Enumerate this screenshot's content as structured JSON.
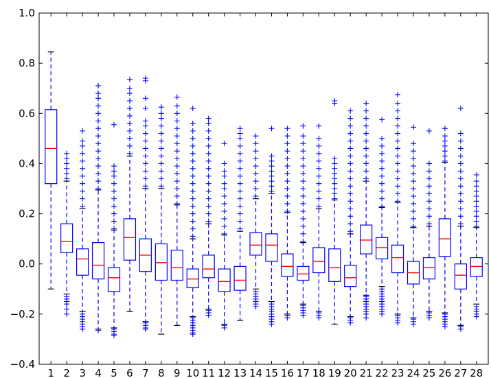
{
  "chart_data": {
    "type": "box",
    "title": "",
    "xlabel": "",
    "ylabel": "",
    "ylim": [
      -0.4,
      1.0
    ],
    "yticks": [
      -0.4,
      -0.2,
      0.0,
      0.2,
      0.4,
      0.6,
      0.8,
      1.0
    ],
    "ytick_labels": [
      "−0.4",
      "−0.2",
      "0.0",
      "0.2",
      "0.4",
      "0.6",
      "0.8",
      "1.0"
    ],
    "grid": false,
    "categories": [
      "1",
      "2",
      "3",
      "4",
      "5",
      "6",
      "7",
      "8",
      "9",
      "10",
      "11",
      "12",
      "13",
      "14",
      "15",
      "16",
      "17",
      "18",
      "19",
      "20",
      "21",
      "22",
      "23",
      "24",
      "25",
      "26",
      "27",
      "28"
    ],
    "colors": {
      "box": "#0000ff",
      "median": "#ff0000",
      "flier": "#0000ff",
      "frame": "#000000"
    },
    "boxes": [
      {
        "q1": 0.32,
        "median": 0.46,
        "q3": 0.615,
        "whisker_low": -0.1,
        "whisker_high": 0.845,
        "fliers_low": [],
        "fliers_high": []
      },
      {
        "q1": 0.045,
        "median": 0.09,
        "q3": 0.16,
        "whisker_low": -0.12,
        "whisker_high": 0.33,
        "fliers_low": [
          -0.13,
          -0.14,
          -0.15,
          -0.16,
          -0.18,
          -0.2
        ],
        "fliers_high": [
          0.34,
          0.36,
          0.38,
          0.4,
          0.42,
          0.44
        ]
      },
      {
        "q1": -0.045,
        "median": 0.02,
        "q3": 0.06,
        "whisker_low": -0.19,
        "whisker_high": 0.22,
        "fliers_low": [
          -0.2,
          -0.21,
          -0.22,
          -0.23,
          -0.24,
          -0.25,
          -0.26
        ],
        "fliers_high": [
          0.23,
          0.26,
          0.29,
          0.32,
          0.35,
          0.38,
          0.41,
          0.44,
          0.47,
          0.49,
          0.53
        ]
      },
      {
        "q1": -0.06,
        "median": -0.005,
        "q3": 0.085,
        "whisker_low": -0.26,
        "whisker_high": 0.295,
        "fliers_low": [
          -0.265
        ],
        "fliers_high": [
          0.3,
          0.33,
          0.36,
          0.39,
          0.42,
          0.45,
          0.48,
          0.51,
          0.54,
          0.57,
          0.6,
          0.63,
          0.66,
          0.68,
          0.71
        ]
      },
      {
        "q1": -0.11,
        "median": -0.055,
        "q3": -0.015,
        "whisker_low": -0.255,
        "whisker_high": 0.135,
        "fliers_low": [
          -0.26,
          -0.27,
          -0.28,
          -0.285
        ],
        "fliers_high": [
          0.14,
          0.17,
          0.2,
          0.23,
          0.26,
          0.29,
          0.32,
          0.35,
          0.37,
          0.39,
          0.555
        ]
      },
      {
        "q1": 0.015,
        "median": 0.105,
        "q3": 0.18,
        "whisker_low": -0.19,
        "whisker_high": 0.43,
        "fliers_low": [],
        "fliers_high": [
          0.44,
          0.47,
          0.5,
          0.53,
          0.56,
          0.59,
          0.62,
          0.65,
          0.68,
          0.7,
          0.735
        ]
      },
      {
        "q1": -0.03,
        "median": 0.035,
        "q3": 0.1,
        "whisker_low": -0.23,
        "whisker_high": 0.3,
        "fliers_low": [
          -0.235,
          -0.245,
          -0.255,
          -0.26
        ],
        "fliers_high": [
          0.31,
          0.34,
          0.37,
          0.4,
          0.43,
          0.46,
          0.49,
          0.52,
          0.55,
          0.57,
          0.62,
          0.66,
          0.73,
          0.74
        ]
      },
      {
        "q1": -0.065,
        "median": 0.005,
        "q3": 0.08,
        "whisker_low": -0.28,
        "whisker_high": 0.3,
        "fliers_low": [],
        "fliers_high": [
          0.31,
          0.34,
          0.37,
          0.4,
          0.43,
          0.46,
          0.49,
          0.52,
          0.55,
          0.58,
          0.6,
          0.625
        ]
      },
      {
        "q1": -0.065,
        "median": -0.015,
        "q3": 0.055,
        "whisker_low": -0.245,
        "whisker_high": 0.235,
        "fliers_low": [],
        "fliers_high": [
          0.24,
          0.27,
          0.3,
          0.33,
          0.36,
          0.39,
          0.42,
          0.45,
          0.48,
          0.51,
          0.54,
          0.57,
          0.6,
          0.63,
          0.665
        ]
      },
      {
        "q1": -0.095,
        "median": -0.06,
        "q3": -0.02,
        "whisker_low": -0.21,
        "whisker_high": 0.1,
        "fliers_low": [
          -0.215,
          -0.225,
          -0.235,
          -0.245,
          -0.255,
          -0.265,
          -0.275,
          -0.28
        ],
        "fliers_high": [
          0.11,
          0.14,
          0.17,
          0.2,
          0.23,
          0.26,
          0.29,
          0.32,
          0.35,
          0.38,
          0.41,
          0.44,
          0.47,
          0.5,
          0.53,
          0.56,
          0.62
        ]
      },
      {
        "q1": -0.055,
        "median": -0.02,
        "q3": 0.035,
        "whisker_low": -0.18,
        "whisker_high": 0.16,
        "fliers_low": [
          -0.185,
          -0.195,
          -0.205
        ],
        "fliers_high": [
          0.17,
          0.2,
          0.23,
          0.26,
          0.29,
          0.32,
          0.35,
          0.38,
          0.41,
          0.44,
          0.47,
          0.5,
          0.53,
          0.56,
          0.58
        ]
      },
      {
        "q1": -0.11,
        "median": -0.07,
        "q3": -0.02,
        "whisker_low": -0.24,
        "whisker_high": 0.115,
        "fliers_low": [
          -0.245,
          -0.255
        ],
        "fliers_high": [
          0.12,
          0.15,
          0.18,
          0.21,
          0.24,
          0.27,
          0.3,
          0.32,
          0.35,
          0.37,
          0.4,
          0.48
        ]
      },
      {
        "q1": -0.105,
        "median": -0.065,
        "q3": -0.01,
        "whisker_low": -0.225,
        "whisker_high": 0.13,
        "fliers_low": [],
        "fliers_high": [
          0.14,
          0.17,
          0.2,
          0.23,
          0.26,
          0.29,
          0.32,
          0.35,
          0.38,
          0.41,
          0.44,
          0.47,
          0.5,
          0.52,
          0.54
        ]
      },
      {
        "q1": 0.035,
        "median": 0.075,
        "q3": 0.125,
        "whisker_low": -0.1,
        "whisker_high": 0.26,
        "fliers_low": [
          -0.11,
          -0.12,
          -0.13,
          -0.14,
          -0.15,
          -0.16,
          -0.17
        ],
        "fliers_high": [
          0.27,
          0.3,
          0.33,
          0.36,
          0.39,
          0.42,
          0.45,
          0.48,
          0.51
        ]
      },
      {
        "q1": 0.01,
        "median": 0.075,
        "q3": 0.12,
        "whisker_low": -0.15,
        "whisker_high": 0.28,
        "fliers_low": [
          -0.16,
          -0.17,
          -0.18,
          -0.19,
          -0.2,
          -0.21,
          -0.22,
          -0.23,
          -0.24
        ],
        "fliers_high": [
          0.29,
          0.31,
          0.33,
          0.35,
          0.37,
          0.39,
          0.41,
          0.43,
          0.54
        ]
      },
      {
        "q1": -0.05,
        "median": -0.01,
        "q3": 0.04,
        "whisker_low": -0.2,
        "whisker_high": 0.205,
        "fliers_low": [
          -0.205,
          -0.215
        ],
        "fliers_high": [
          0.21,
          0.24,
          0.27,
          0.3,
          0.33,
          0.36,
          0.39,
          0.42,
          0.45,
          0.48,
          0.51,
          0.54
        ]
      },
      {
        "q1": -0.065,
        "median": -0.04,
        "q3": -0.01,
        "whisker_low": -0.16,
        "whisker_high": 0.085,
        "fliers_low": [
          -0.165,
          -0.175,
          -0.185,
          -0.195,
          -0.205
        ],
        "fliers_high": [
          0.09,
          0.12,
          0.15,
          0.18,
          0.21,
          0.24,
          0.27,
          0.3,
          0.33,
          0.36,
          0.39,
          0.42,
          0.45,
          0.48,
          0.51,
          0.55
        ]
      },
      {
        "q1": -0.035,
        "median": 0.01,
        "q3": 0.065,
        "whisker_low": -0.19,
        "whisker_high": 0.22,
        "fliers_low": [
          -0.195,
          -0.205,
          -0.215
        ],
        "fliers_high": [
          0.23,
          0.26,
          0.29,
          0.32,
          0.35,
          0.38,
          0.41,
          0.44,
          0.47,
          0.5,
          0.55
        ]
      },
      {
        "q1": -0.07,
        "median": -0.015,
        "q3": 0.06,
        "whisker_low": -0.24,
        "whisker_high": 0.255,
        "fliers_low": [],
        "fliers_high": [
          0.26,
          0.28,
          0.3,
          0.32,
          0.34,
          0.36,
          0.38,
          0.4,
          0.42,
          0.64,
          0.65
        ]
      },
      {
        "q1": -0.09,
        "median": -0.055,
        "q3": -0.005,
        "whisker_low": -0.21,
        "whisker_high": 0.12,
        "fliers_low": [
          -0.215,
          -0.225,
          -0.235
        ],
        "fliers_high": [
          0.13,
          0.16,
          0.19,
          0.22,
          0.25,
          0.28,
          0.31,
          0.34,
          0.37,
          0.4,
          0.43,
          0.46,
          0.49,
          0.52,
          0.55,
          0.58,
          0.61
        ]
      },
      {
        "q1": 0.04,
        "median": 0.095,
        "q3": 0.155,
        "whisker_low": -0.125,
        "whisker_high": 0.33,
        "fliers_low": [
          -0.13,
          -0.14,
          -0.15,
          -0.16,
          -0.17,
          -0.18,
          -0.19,
          -0.2,
          -0.215
        ],
        "fliers_high": [
          0.34,
          0.37,
          0.4,
          0.43,
          0.46,
          0.49,
          0.52,
          0.55,
          0.58,
          0.61,
          0.64
        ]
      },
      {
        "q1": 0.02,
        "median": 0.065,
        "q3": 0.105,
        "whisker_low": -0.09,
        "whisker_high": 0.225,
        "fliers_low": [
          -0.1,
          -0.11,
          -0.12,
          -0.13,
          -0.14,
          -0.15,
          -0.16,
          -0.17,
          -0.18,
          -0.19,
          -0.2
        ],
        "fliers_high": [
          0.23,
          0.26,
          0.29,
          0.32,
          0.35,
          0.38,
          0.41,
          0.44,
          0.47,
          0.5,
          0.575
        ]
      },
      {
        "q1": -0.035,
        "median": 0.025,
        "q3": 0.075,
        "whisker_low": -0.2,
        "whisker_high": 0.245,
        "fliers_low": [
          -0.205,
          -0.215,
          -0.225,
          -0.235
        ],
        "fliers_high": [
          0.25,
          0.28,
          0.31,
          0.34,
          0.37,
          0.4,
          0.43,
          0.46,
          0.49,
          0.52,
          0.55,
          0.58,
          0.61,
          0.64,
          0.675
        ]
      },
      {
        "q1": -0.08,
        "median": -0.035,
        "q3": 0.01,
        "whisker_low": -0.215,
        "whisker_high": 0.145,
        "fliers_low": [
          -0.22,
          -0.23,
          -0.24
        ],
        "fliers_high": [
          0.15,
          0.18,
          0.21,
          0.24,
          0.27,
          0.3,
          0.33,
          0.36,
          0.39,
          0.42,
          0.45,
          0.48,
          0.545
        ]
      },
      {
        "q1": -0.06,
        "median": -0.015,
        "q3": 0.025,
        "whisker_low": -0.19,
        "whisker_high": 0.15,
        "fliers_low": [
          -0.195,
          -0.205,
          -0.215
        ],
        "fliers_high": [
          0.16,
          0.19,
          0.22,
          0.25,
          0.28,
          0.31,
          0.34,
          0.37,
          0.4,
          0.53
        ]
      },
      {
        "q1": 0.03,
        "median": 0.1,
        "q3": 0.18,
        "whisker_low": -0.195,
        "whisker_high": 0.405,
        "fliers_low": [
          -0.2,
          -0.21,
          -0.22,
          -0.23,
          -0.24,
          -0.25
        ],
        "fliers_high": [
          0.41,
          0.43,
          0.45,
          0.47,
          0.49,
          0.51,
          0.54
        ]
      },
      {
        "q1": -0.1,
        "median": -0.045,
        "q3": 0.0,
        "whisker_low": -0.245,
        "whisker_high": 0.15,
        "fliers_low": [
          -0.25,
          -0.26
        ],
        "fliers_high": [
          0.16,
          0.19,
          0.22,
          0.25,
          0.28,
          0.31,
          0.34,
          0.37,
          0.4,
          0.43,
          0.46,
          0.49,
          0.52,
          0.62
        ]
      },
      {
        "q1": -0.05,
        "median": -0.01,
        "q3": 0.025,
        "whisker_low": -0.16,
        "whisker_high": 0.145,
        "fliers_low": [
          -0.17,
          -0.18,
          -0.19,
          -0.2,
          -0.21
        ],
        "fliers_high": [
          0.15,
          0.17,
          0.19,
          0.21,
          0.23,
          0.25,
          0.27,
          0.29,
          0.31,
          0.33,
          0.355
        ]
      }
    ]
  }
}
